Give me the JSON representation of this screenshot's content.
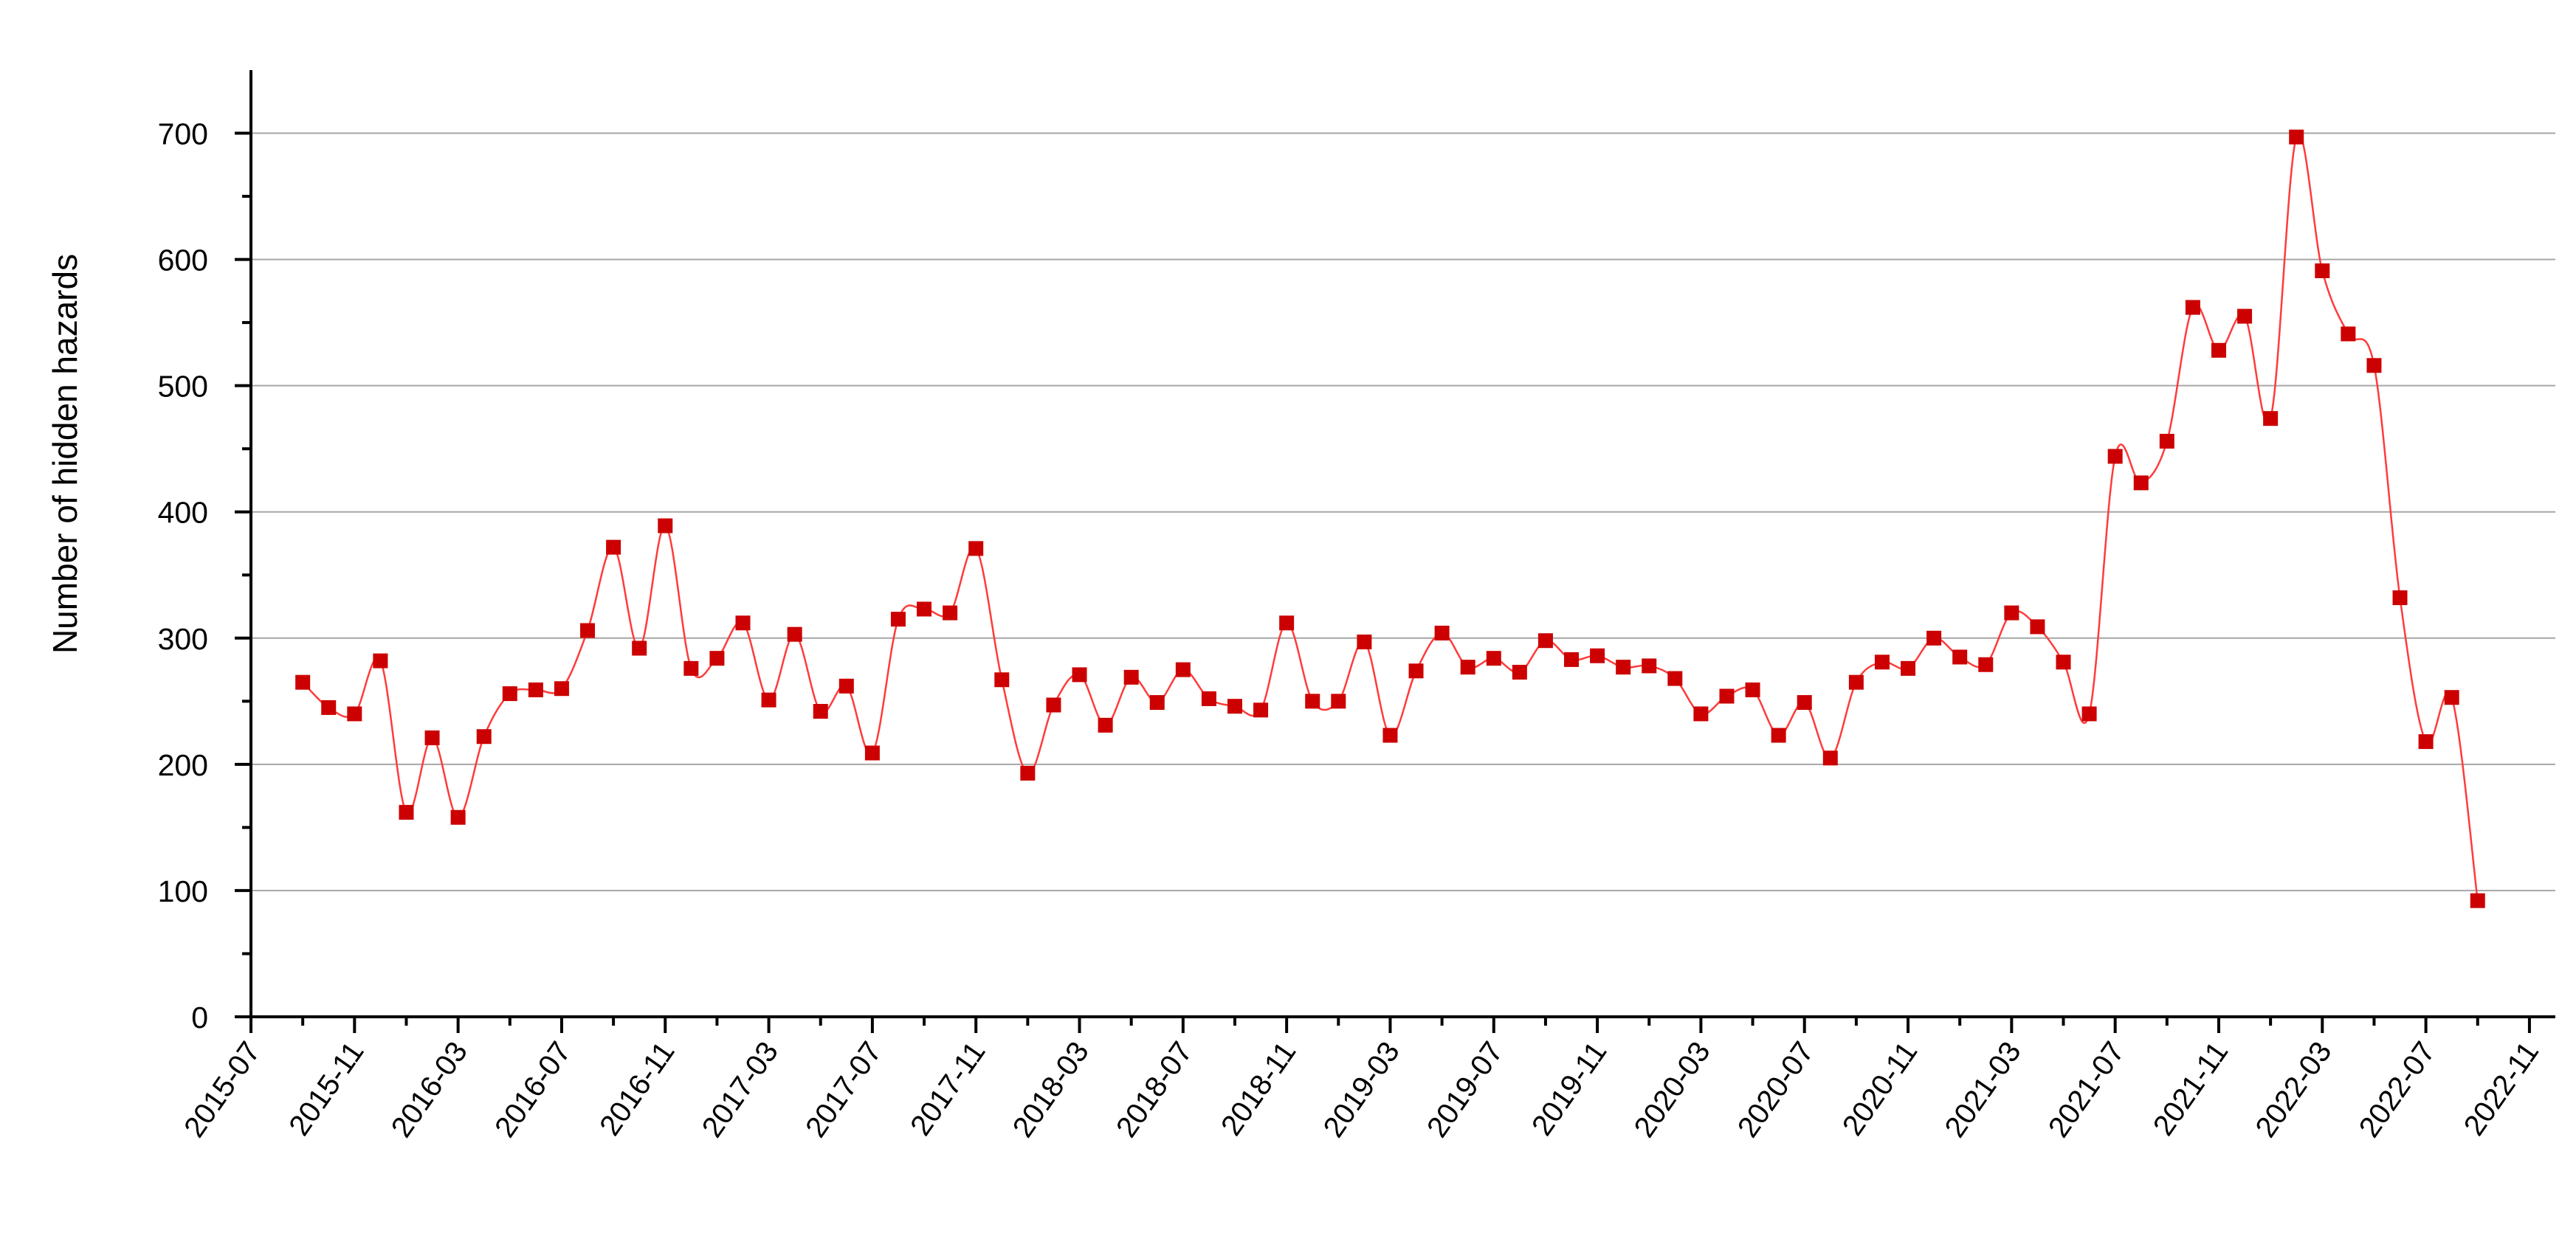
{
  "chart_data": {
    "type": "line",
    "title": "",
    "xlabel": "",
    "ylabel": "Number of hidden hazards",
    "ylim": [
      0,
      750
    ],
    "y_ticks": [
      0,
      100,
      200,
      300,
      400,
      500,
      600,
      700
    ],
    "y_tick_labels": [
      "0",
      "100",
      "200",
      "300",
      "400",
      "500",
      "600",
      "700"
    ],
    "x_range": [
      "2015-07",
      "2022-12"
    ],
    "x_tick_labels": [
      "2015-07",
      "2015-11",
      "2016-03",
      "2016-07",
      "2016-11",
      "2017-03",
      "2017-07",
      "2017-11",
      "2018-03",
      "2018-07",
      "2018-11",
      "2019-03",
      "2019-07",
      "2019-11",
      "2020-03",
      "2020-07",
      "2020-11",
      "2021-03",
      "2021-07",
      "2021-11",
      "2022-03",
      "2022-07",
      "2022-11"
    ],
    "grid": "horizontal",
    "line_color": "#ff3b3b",
    "marker_color": "#cc0000",
    "series": [
      {
        "x": [
          "2015-09",
          "2015-10",
          "2015-11",
          "2015-12",
          "2016-01",
          "2016-02",
          "2016-03",
          "2016-04",
          "2016-05",
          "2016-06",
          "2016-07",
          "2016-08",
          "2016-09",
          "2016-10",
          "2016-11",
          "2016-12",
          "2017-01",
          "2017-02",
          "2017-03",
          "2017-04",
          "2017-05",
          "2017-06",
          "2017-07",
          "2017-08",
          "2017-09",
          "2017-10",
          "2017-11",
          "2017-12",
          "2018-01",
          "2018-02",
          "2018-03",
          "2018-04",
          "2018-05",
          "2018-06",
          "2018-07",
          "2018-08",
          "2018-09",
          "2018-10",
          "2018-11",
          "2018-12",
          "2019-01",
          "2019-02",
          "2019-03",
          "2019-04",
          "2019-05",
          "2019-06",
          "2019-07",
          "2019-08",
          "2019-09",
          "2019-10",
          "2019-11",
          "2019-12",
          "2020-01",
          "2020-02",
          "2020-03",
          "2020-04",
          "2020-05",
          "2020-06",
          "2020-07",
          "2020-08",
          "2020-09",
          "2020-10",
          "2020-11",
          "2020-12",
          "2021-01",
          "2021-02",
          "2021-03",
          "2021-04",
          "2021-05",
          "2021-06",
          "2021-07",
          "2021-08",
          "2021-09",
          "2021-10",
          "2021-11",
          "2021-12",
          "2022-01",
          "2022-02",
          "2022-03",
          "2022-04",
          "2022-05",
          "2022-06",
          "2022-07",
          "2022-08",
          "2022-09"
        ],
        "values": [
          265,
          245,
          240,
          282,
          162,
          221,
          158,
          222,
          256,
          259,
          260,
          306,
          372,
          292,
          389,
          276,
          284,
          312,
          251,
          303,
          242,
          262,
          209,
          315,
          323,
          320,
          371,
          267,
          193,
          247,
          271,
          231,
          269,
          249,
          275,
          252,
          246,
          243,
          312,
          250,
          250,
          297,
          223,
          274,
          304,
          277,
          284,
          273,
          298,
          283,
          286,
          277,
          278,
          268,
          240,
          254,
          259,
          223,
          249,
          205,
          265,
          281,
          276,
          300,
          285,
          279,
          320,
          309,
          281,
          240,
          444,
          423,
          456,
          562,
          528,
          555,
          474,
          697,
          591,
          541,
          516,
          332,
          218,
          253,
          92
        ]
      }
    ]
  }
}
